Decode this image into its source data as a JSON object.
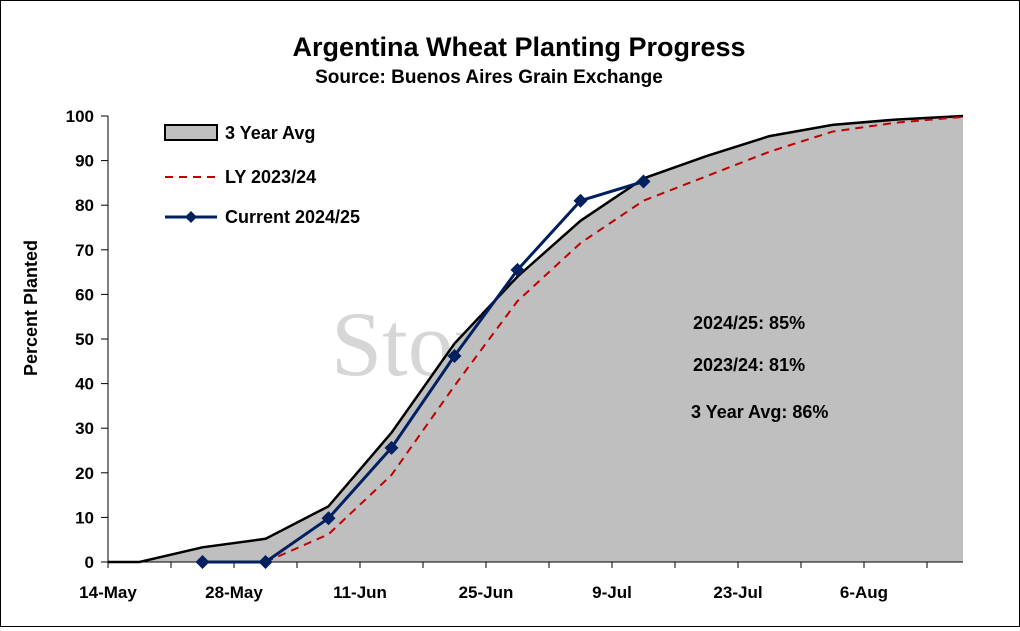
{
  "chart_data": {
    "type": "line",
    "title": "Argentina Wheat Planting Progress",
    "subtitle": "Source: Buenos Aires Grain Exchange",
    "ylabel": "Percent Planted",
    "xlabel": "",
    "x_tick_labels": [
      "14-May",
      "28-May",
      "11-Jun",
      "25-Jun",
      "9-Jul",
      "23-Jul",
      "6-Aug"
    ],
    "x_tick_days": [
      0,
      14,
      28,
      42,
      56,
      70,
      84
    ],
    "xlim_days": [
      0,
      95
    ],
    "ylim": [
      0,
      100
    ],
    "y_ticks": [
      0,
      10,
      20,
      30,
      40,
      50,
      60,
      70,
      80,
      90,
      100
    ],
    "legend_position": "top-left",
    "watermark": "StoneX",
    "series": [
      {
        "name": "3 Year Avg",
        "style": "area",
        "fill": "#bfbfbf",
        "stroke": "#000000",
        "points": [
          [
            0,
            0
          ],
          [
            3.5,
            0
          ],
          [
            10.5,
            3.3
          ],
          [
            17.5,
            5.2
          ],
          [
            24.5,
            12.5
          ],
          [
            31.5,
            29
          ],
          [
            38.5,
            49
          ],
          [
            45.5,
            64
          ],
          [
            52.5,
            76.5
          ],
          [
            59.5,
            86
          ],
          [
            66.5,
            91
          ],
          [
            73.5,
            95.5
          ],
          [
            80.5,
            98
          ],
          [
            87.5,
            99.2
          ],
          [
            95,
            100
          ]
        ]
      },
      {
        "name": "LY 2023/24",
        "style": "dashed",
        "stroke": "#c00000",
        "points": [
          [
            17.5,
            0
          ],
          [
            24.5,
            6.2
          ],
          [
            31.5,
            19.5
          ],
          [
            38.5,
            39.5
          ],
          [
            45.5,
            58.5
          ],
          [
            52.5,
            71.5
          ],
          [
            59.5,
            81
          ],
          [
            66.5,
            86.5
          ],
          [
            73.5,
            92
          ],
          [
            80.5,
            96.5
          ],
          [
            87.5,
            98.5
          ],
          [
            95,
            99.8
          ]
        ]
      },
      {
        "name": "Current 2024/25",
        "style": "line-markers",
        "stroke": "#002060",
        "points": [
          [
            10.5,
            0
          ],
          [
            17.5,
            0
          ],
          [
            24.5,
            9.8
          ],
          [
            31.5,
            25.6
          ],
          [
            38.5,
            46.2
          ],
          [
            45.5,
            65.5
          ],
          [
            52.5,
            81
          ],
          [
            59.5,
            85.3
          ]
        ]
      }
    ],
    "annotations": [
      "2024/25: 85%",
      "2023/24: 81%",
      "3 Year Avg: 86%"
    ]
  }
}
